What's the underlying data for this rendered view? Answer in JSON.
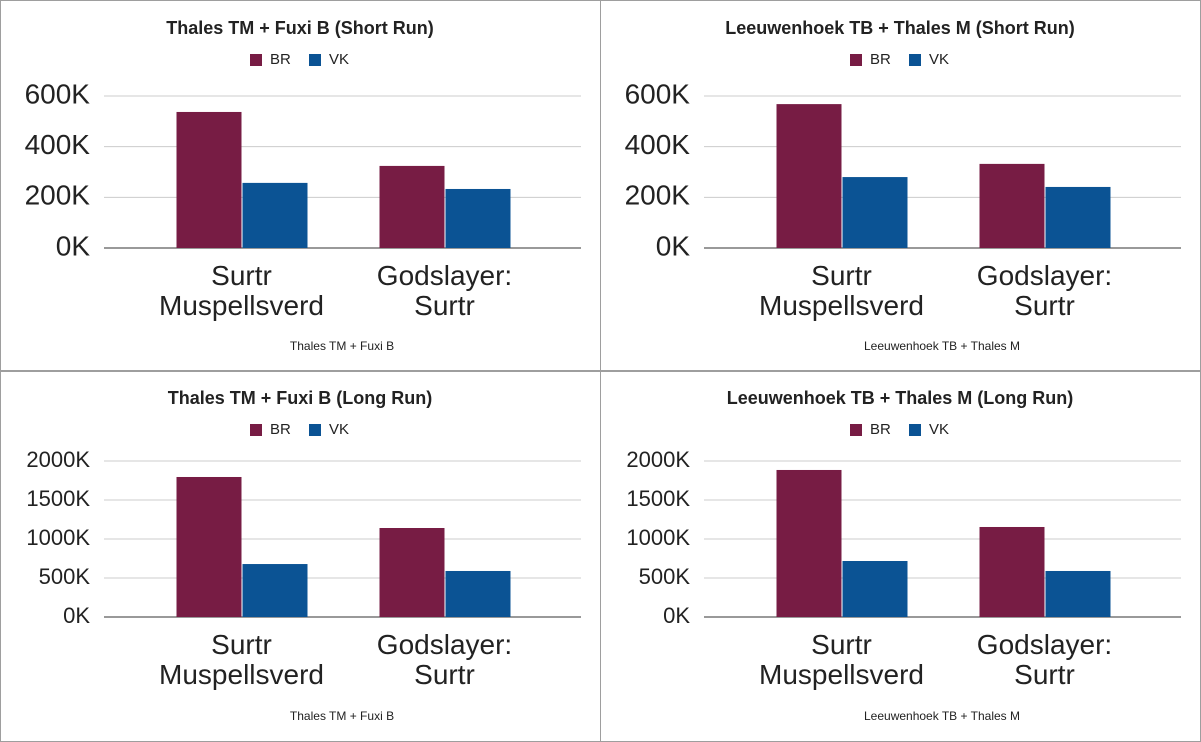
{
  "chart_data": [
    {
      "type": "bar",
      "title": "Thales TM + Fuxi B (Short Run)",
      "x_label": "Thales TM + Fuxi B",
      "categories": [
        "Surtr Muspellsverd",
        "Godslayer: Surtr"
      ],
      "series": [
        {
          "name": "BR",
          "color": "#771c44",
          "values": [
            537000,
            324000
          ]
        },
        {
          "name": "VK",
          "color": "#0b5394",
          "values": [
            257000,
            233000
          ]
        }
      ],
      "ylim": [
        0,
        600000
      ],
      "yticks": [
        {
          "value": 0,
          "label": "0K"
        },
        {
          "value": 200000,
          "label": "200K"
        },
        {
          "value": 400000,
          "label": "400K"
        },
        {
          "value": 600000,
          "label": "600K"
        }
      ],
      "grid": true,
      "legend": "top"
    },
    {
      "type": "bar",
      "title": "Leeuwenhoek TB + Thales M (Short Run)",
      "x_label": "Leeuwenhoek TB + Thales M",
      "categories": [
        "Surtr Muspellsverd",
        "Godslayer: Surtr"
      ],
      "series": [
        {
          "name": "BR",
          "color": "#771c44",
          "values": [
            568000,
            332000
          ]
        },
        {
          "name": "VK",
          "color": "#0b5394",
          "values": [
            280000,
            241000
          ]
        }
      ],
      "ylim": [
        0,
        600000
      ],
      "yticks": [
        {
          "value": 0,
          "label": "0K"
        },
        {
          "value": 200000,
          "label": "200K"
        },
        {
          "value": 400000,
          "label": "400K"
        },
        {
          "value": 600000,
          "label": "600K"
        }
      ],
      "grid": true,
      "legend": "top"
    },
    {
      "type": "bar",
      "title": "Thales TM + Fuxi B (Long Run)",
      "x_label": "Thales TM + Fuxi B",
      "categories": [
        "Surtr Muspellsverd",
        "Godslayer: Surtr"
      ],
      "series": [
        {
          "name": "BR",
          "color": "#771c44",
          "values": [
            1795000,
            1141000
          ]
        },
        {
          "name": "VK",
          "color": "#0b5394",
          "values": [
            679000,
            590000
          ]
        }
      ],
      "ylim": [
        0,
        2000000
      ],
      "yticks": [
        {
          "value": 0,
          "label": "0K"
        },
        {
          "value": 500000,
          "label": "500K"
        },
        {
          "value": 1000000,
          "label": "1000K"
        },
        {
          "value": 1500000,
          "label": "1500K"
        },
        {
          "value": 2000000,
          "label": "2000K"
        }
      ],
      "grid": true,
      "legend": "top"
    },
    {
      "type": "bar",
      "title": "Leeuwenhoek TB + Thales M (Long Run)",
      "x_label": "Leeuwenhoek TB + Thales M",
      "categories": [
        "Surtr Muspellsverd",
        "Godslayer: Surtr"
      ],
      "series": [
        {
          "name": "BR",
          "color": "#771c44",
          "values": [
            1885000,
            1154000
          ]
        },
        {
          "name": "VK",
          "color": "#0b5394",
          "values": [
            718000,
            590000
          ]
        }
      ],
      "ylim": [
        0,
        2000000
      ],
      "yticks": [
        {
          "value": 0,
          "label": "0K"
        },
        {
          "value": 500000,
          "label": "500K"
        },
        {
          "value": 1000000,
          "label": "1000K"
        },
        {
          "value": 1500000,
          "label": "1500K"
        },
        {
          "value": 2000000,
          "label": "2000K"
        }
      ],
      "grid": true,
      "legend": "top"
    }
  ]
}
